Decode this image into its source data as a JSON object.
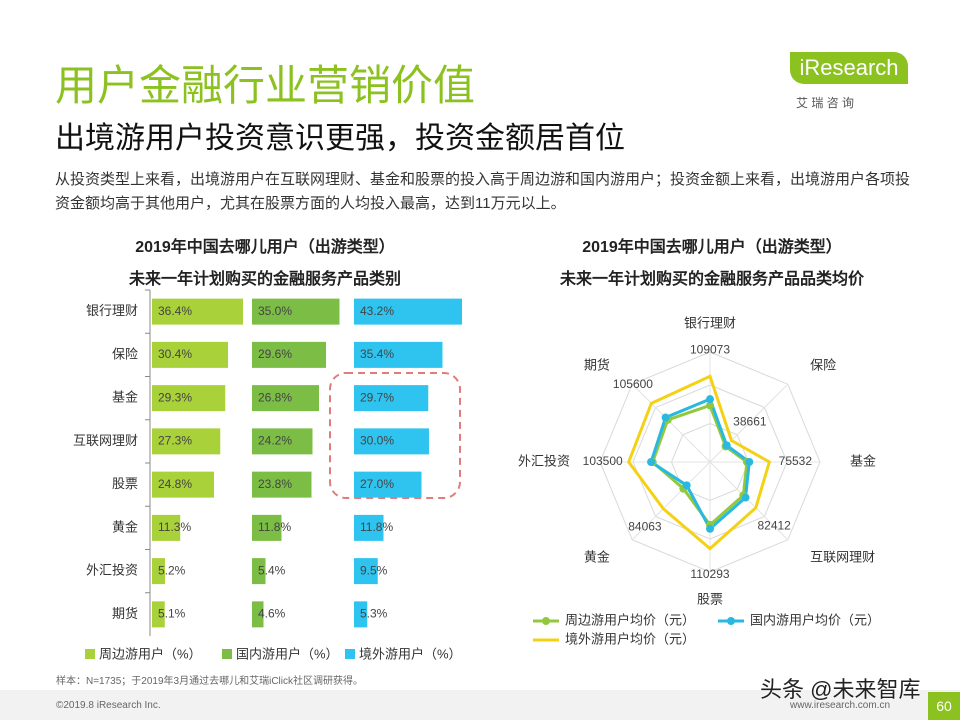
{
  "header": {
    "title": "用户金融行业营销价值",
    "subtitle": "出境游用户投资意识更强，投资金额居首位",
    "description": "从投资类型上来看，出境游用户在互联网理财、基金和股票的投入高于周边游和国内游用户；投资金额上来看，出境游用户各项投资金额均高于其他用户，尤其在股票方面的人均投入最高，达到11万元以上。"
  },
  "logo": {
    "name": "iResearch",
    "tagline": "艾 瑞 咨 询"
  },
  "chart_data": [
    {
      "type": "bar",
      "title": "2019年中国去哪儿用户（出游类型）",
      "subtitle": "未来一年计划购买的金融服务产品类别",
      "categories": [
        "银行理财",
        "保险",
        "基金",
        "互联网理财",
        "股票",
        "黄金",
        "外汇投资",
        "期货"
      ],
      "series": [
        {
          "name": "周边游用户（%）",
          "color": "#a9d13a",
          "values": [
            36.4,
            30.4,
            29.3,
            27.3,
            24.8,
            11.3,
            5.2,
            5.1
          ],
          "value_labels": [
            "36.4%",
            "30.4%",
            "29.3%",
            "27.3%",
            "24.8%",
            "11.3%",
            "5.2%",
            "5.1%"
          ]
        },
        {
          "name": "国内游用户（%）",
          "color": "#7cbd45",
          "values": [
            35.0,
            29.6,
            26.8,
            24.2,
            23.8,
            11.8,
            5.4,
            4.6
          ],
          "value_labels": [
            "35.0%",
            "29.6%",
            "26.8%",
            "24.2%",
            "23.8%",
            "11.8%",
            "5.4%",
            "4.6%"
          ]
        },
        {
          "name": "境外游用户（%）",
          "color": "#2ec4ef",
          "values": [
            43.2,
            35.4,
            29.7,
            30.0,
            27.0,
            11.8,
            9.5,
            5.3
          ],
          "value_labels": [
            "43.2%",
            "35.4%",
            "29.7%",
            "30.0%",
            "27.0%",
            "11.8%",
            "9.5%",
            "5.3%"
          ]
        }
      ]
    },
    {
      "type": "radar",
      "title": "2019年中国去哪儿用户（出游类型）",
      "subtitle": "未来一年计划购买的金融服务产品品类均价",
      "categories": [
        "银行理财",
        "保险",
        "基金",
        "互联网理财",
        "股票",
        "黄金",
        "外汇投资",
        "期货"
      ],
      "ylim": [
        0,
        140000
      ],
      "series": [
        {
          "name": "周边游用户均价（元）",
          "color": "#92c83e",
          "marker": true,
          "values": [
            72000,
            28000,
            47000,
            60000,
            80000,
            48000,
            73000,
            76000
          ]
        },
        {
          "name": "国内游用户均价（元）",
          "color": "#29b9df",
          "marker": true,
          "values": [
            80000,
            30000,
            50000,
            64000,
            85000,
            42000,
            75000,
            80000
          ]
        },
        {
          "name": "境外游用户均价（元）",
          "color": "#f5d116",
          "marker": false,
          "labels": true,
          "values": [
            109073,
            38661,
            75532,
            82412,
            110293,
            84063,
            103500,
            105600
          ]
        }
      ]
    }
  ],
  "footer": {
    "note": "样本：N=1735；于2019年3月通过去哪儿和艾瑞iClick社区调研获得。",
    "copyright": "©2019.8 iResearch Inc.",
    "url": "www.iresearch.com.cn",
    "page": "60",
    "watermark": "头条 @未来智库"
  }
}
